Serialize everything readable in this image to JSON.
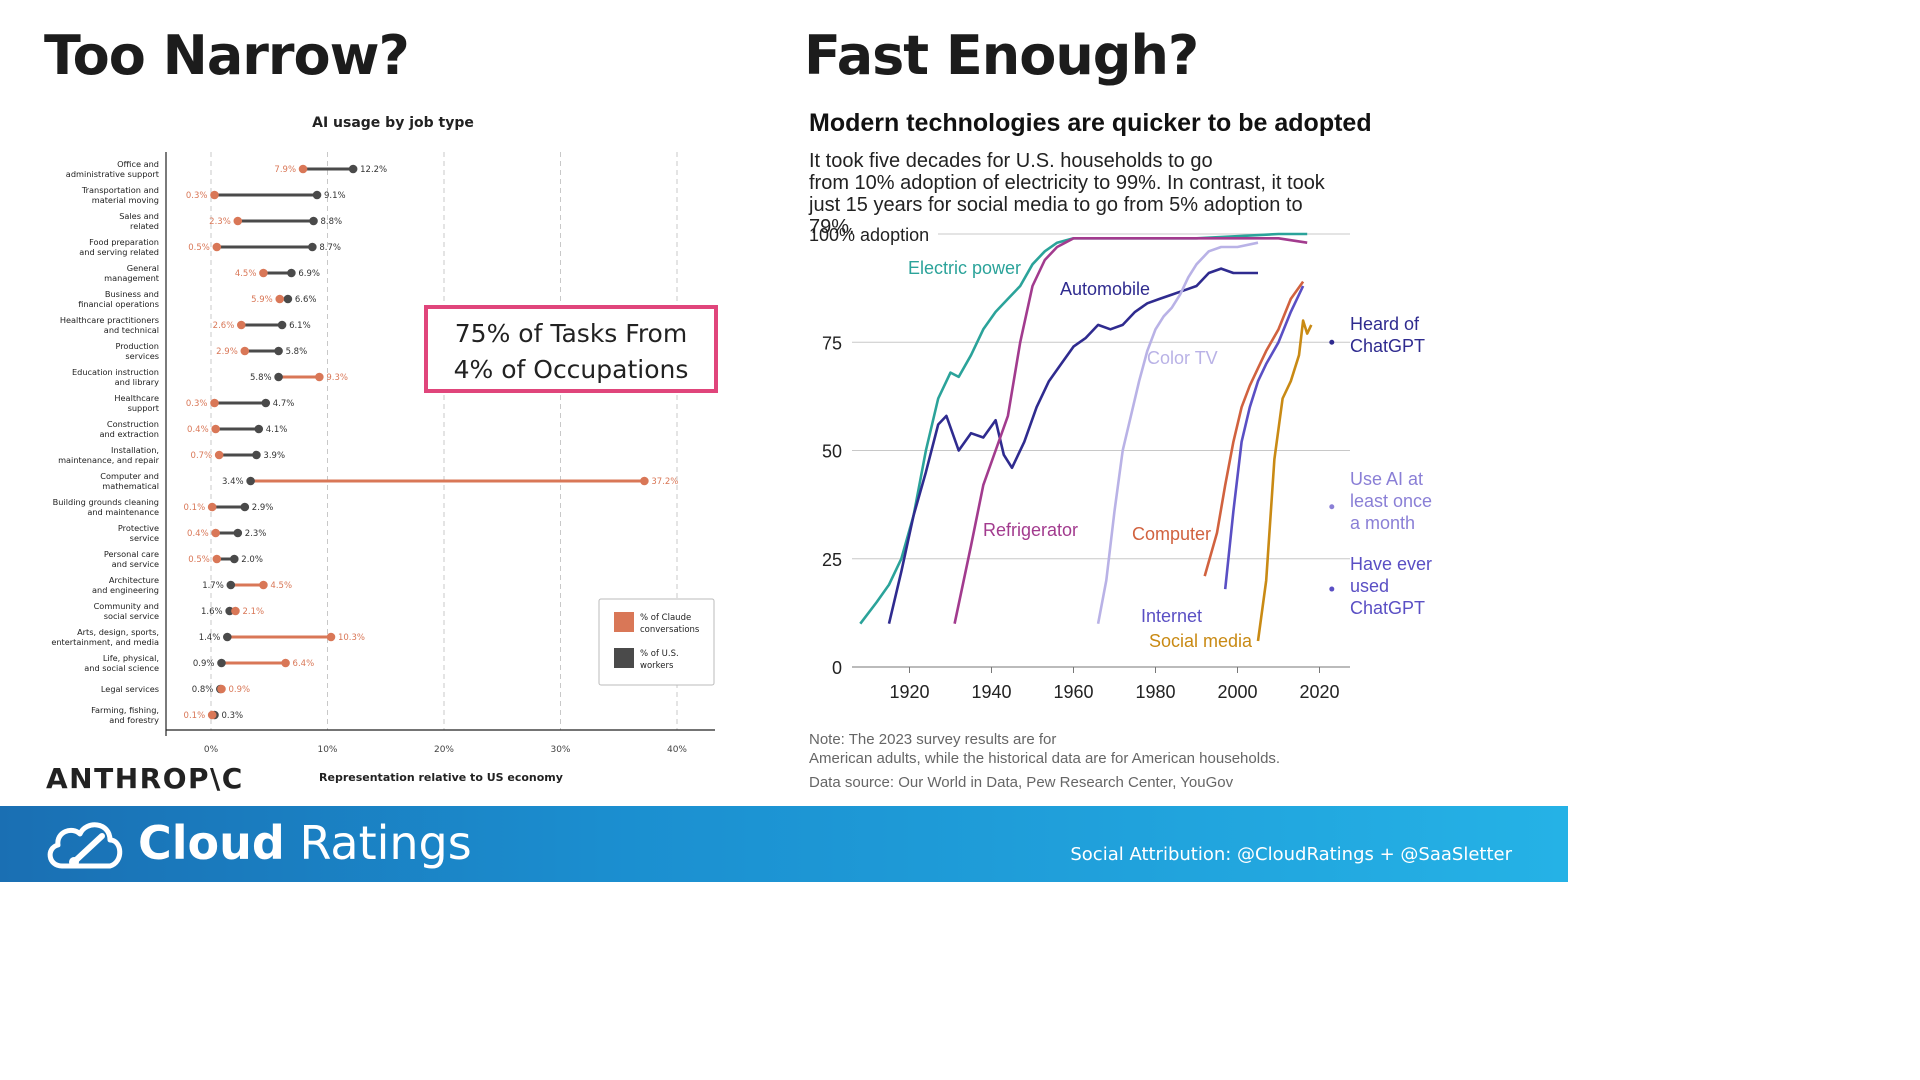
{
  "slide": {
    "left_heading": "Too Narrow?",
    "right_heading": "Fast Enough?",
    "callout_line1": "75% of Tasks From",
    "callout_line2": "4% of Occupations",
    "anthropic_logo": "ANTHROP\\C",
    "brand_bold": "Cloud",
    "brand_light": "Ratings",
    "attribution": "Social Attribution: @CloudRatings + @SaaSletter",
    "colors": {
      "claude": "#d97757",
      "workers": "#4a4a4a",
      "highlight": "#e0457b",
      "footer": "#1b8fd0"
    }
  },
  "chart_data": [
    {
      "type": "dumbbell",
      "title": "AI usage by job type",
      "xlabel": "Representation relative to US economy",
      "ylabel": "",
      "xlim": [
        -4,
        43
      ],
      "xticks": [
        "0%",
        "10%",
        "20%",
        "30%",
        "40%"
      ],
      "grid": true,
      "legend_position": "bottom-right",
      "series": [
        {
          "name": "% of Claude conversations",
          "color": "#d97757"
        },
        {
          "name": "% of U.S. workers",
          "color": "#4a4a4a"
        }
      ],
      "categories": [
        "Office and administrative support",
        "Transportation and material moving",
        "Sales and related",
        "Food preparation and serving related",
        "General management",
        "Business and financial operations",
        "Healthcare practitioners and technical",
        "Production services",
        "Education instruction and library",
        "Healthcare support",
        "Construction and extraction",
        "Installation, maintenance, and repair",
        "Computer and mathematical",
        "Building grounds cleaning and maintenance",
        "Protective service",
        "Personal care and service",
        "Architecture and engineering",
        "Community and social service",
        "Arts, design, sports, entertainment, and media",
        "Life, physical, and social science",
        "Legal services",
        "Farming, fishing, and forestry"
      ],
      "claude_values": [
        7.9,
        0.3,
        2.3,
        0.5,
        4.5,
        5.9,
        2.6,
        2.9,
        9.3,
        0.3,
        0.4,
        0.7,
        37.2,
        0.1,
        0.4,
        0.5,
        4.5,
        2.1,
        10.3,
        6.4,
        0.9,
        0.1
      ],
      "worker_values": [
        12.2,
        9.1,
        8.8,
        8.7,
        6.9,
        6.6,
        6.1,
        5.8,
        5.8,
        4.7,
        4.1,
        3.9,
        3.4,
        2.9,
        2.3,
        2.0,
        1.7,
        1.6,
        1.4,
        0.9,
        0.8,
        0.3
      ],
      "claude_labels": [
        "7.9%",
        "0.3%",
        "2.3%",
        "0.5%",
        "4.5%",
        "5.9%",
        "2.6%",
        "2.9%",
        "9.3%",
        "0.3%",
        "0.4%",
        "0.7%",
        "37.2%",
        "0.1%",
        "0.4%",
        "0.5%",
        "4.5%",
        "2.1%",
        "10.3%",
        "6.4%",
        "0.9%",
        "0.1%"
      ],
      "worker_labels": [
        "12.2%",
        "9.1%",
        "8.8%",
        "8.7%",
        "6.9%",
        "6.6%",
        "6.1%",
        "5.8%",
        "5.8%",
        "4.7%",
        "4.1%",
        "3.9%",
        "3.4%",
        "2.9%",
        "2.3%",
        "2.0%",
        "1.7%",
        "1.6%",
        "1.4%",
        "0.9%",
        "0.8%",
        "0.3%"
      ]
    },
    {
      "type": "line",
      "title": "Modern technologies are quicker to be adopted",
      "subtitle": "It took five decades for U.S. households to go from 10% adoption of electricity to 99%. In contrast, it took just 15 years for social media to go from 5% adoption to 79%.",
      "xlabel": "",
      "ylabel": "",
      "xlim": [
        1905,
        2027
      ],
      "ylim": [
        0,
        100
      ],
      "xticks": [
        "1920",
        "1940",
        "1960",
        "1980",
        "2000",
        "2020"
      ],
      "yticks": [
        "0",
        "25",
        "50",
        "75",
        "100% adoption"
      ],
      "grid": true,
      "note": "Note: The 2023 survey results are for American adults, while the historical data are for American households.",
      "source": "Data source: Our World in Data, Pew Research Center, YouGov",
      "series": [
        {
          "name": "Electric power",
          "color": "#2ba39a",
          "x": [
            1908,
            1912,
            1915,
            1918,
            1921,
            1924,
            1927,
            1930,
            1932,
            1935,
            1938,
            1941,
            1944,
            1947,
            1950,
            1953,
            1956,
            1960,
            1970,
            1990,
            2010,
            2017
          ],
          "y": [
            10,
            15,
            19,
            25,
            35,
            50,
            62,
            68,
            67,
            72,
            78,
            82,
            85,
            88,
            93,
            96,
            98,
            99,
            99,
            99,
            100,
            100
          ]
        },
        {
          "name": "Automobile",
          "color": "#2f2b8f",
          "x": [
            1915,
            1918,
            1921,
            1924,
            1927,
            1929,
            1932,
            1935,
            1938,
            1941,
            1943,
            1945,
            1948,
            1951,
            1954,
            1957,
            1960,
            1963,
            1966,
            1969,
            1972,
            1975,
            1978,
            1981,
            1984,
            1987,
            1990,
            1993,
            1996,
            1999,
            2002,
            2005
          ],
          "y": [
            10,
            22,
            35,
            45,
            56,
            58,
            50,
            54,
            53,
            57,
            49,
            46,
            52,
            60,
            66,
            70,
            74,
            76,
            79,
            78,
            79,
            82,
            84,
            85,
            86,
            87,
            88,
            91,
            92,
            91,
            91,
            91
          ]
        },
        {
          "name": "Refrigerator",
          "color": "#a23b8e",
          "x": [
            1931,
            1935,
            1938,
            1941,
            1944,
            1947,
            1950,
            1953,
            1956,
            1960,
            1970,
            1990,
            2010,
            2017
          ],
          "y": [
            10,
            28,
            42,
            50,
            58,
            75,
            88,
            94,
            97,
            99,
            99,
            99,
            99,
            98
          ]
        },
        {
          "name": "Color TV",
          "color": "#b9b2e6",
          "x": [
            1966,
            1968,
            1970,
            1972,
            1974,
            1976,
            1978,
            1980,
            1982,
            1984,
            1986,
            1988,
            1990,
            1993,
            1996,
            2000,
            2005
          ],
          "y": [
            10,
            20,
            36,
            50,
            58,
            66,
            73,
            78,
            81,
            83,
            86,
            90,
            93,
            96,
            97,
            97,
            98
          ]
        },
        {
          "name": "Computer",
          "color": "#d1623f",
          "x": [
            1992,
            1995,
            1997,
            1999,
            2001,
            2003,
            2005,
            2007,
            2010,
            2013,
            2016
          ],
          "y": [
            21,
            31,
            42,
            52,
            60,
            65,
            69,
            73,
            78,
            85,
            89
          ]
        },
        {
          "name": "Internet",
          "color": "#5a4fc4",
          "x": [
            1997,
            1999,
            2001,
            2003,
            2005,
            2007,
            2010,
            2013,
            2016
          ],
          "y": [
            18,
            36,
            52,
            60,
            66,
            70,
            75,
            82,
            88
          ]
        },
        {
          "name": "Social media",
          "color": "#c98a14",
          "x": [
            2005,
            2007,
            2009,
            2011,
            2013,
            2015,
            2016,
            2017,
            2018
          ],
          "y": [
            6,
            20,
            48,
            62,
            66,
            72,
            80,
            77,
            79
          ]
        }
      ],
      "markers": [
        {
          "label": "Heard of ChatGPT",
          "x": 2023,
          "y": 75,
          "color": "#2f2b8f"
        },
        {
          "label": "Use AI at least once a month",
          "x": 2023,
          "y": 37,
          "color": "#8a7fd6"
        },
        {
          "label": "Have ever used ChatGPT",
          "x": 2023,
          "y": 18,
          "color": "#5a4fc4"
        }
      ]
    }
  ]
}
